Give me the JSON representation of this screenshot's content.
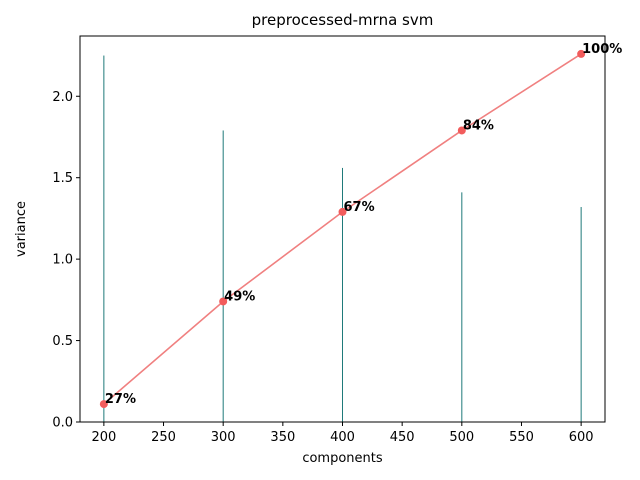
{
  "chart_data": {
    "type": "line",
    "title": "preprocessed-mrna svm",
    "xlabel": "components",
    "ylabel": "variance",
    "xlim": [
      180,
      620
    ],
    "ylim": [
      0,
      2.37
    ],
    "xticks": [
      200,
      250,
      300,
      350,
      400,
      450,
      500,
      550,
      600
    ],
    "yticks": [
      "0.0",
      "0.5",
      "1.0",
      "1.5",
      "2.0"
    ],
    "grid": false,
    "legend": "none",
    "x": [
      200,
      300,
      400,
      500,
      600
    ],
    "bars": {
      "values": [
        2.25,
        1.79,
        1.56,
        1.41,
        1.32
      ],
      "color": "#1f7a7a"
    },
    "line": {
      "values": [
        0.11,
        0.74,
        1.29,
        1.79,
        2.26
      ],
      "color": "#f08080",
      "marker_color": "#f25c5c"
    },
    "labels": [
      "27%",
      "49%",
      "67%",
      "84%",
      "100%"
    ]
  }
}
